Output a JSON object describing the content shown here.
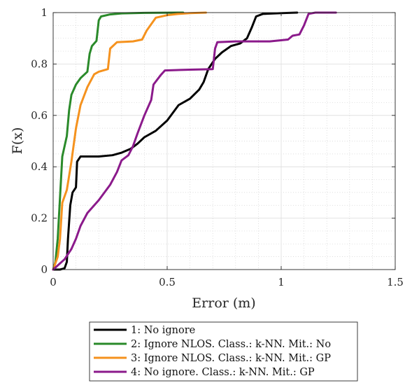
{
  "chart_data": {
    "type": "line",
    "title": "",
    "xlabel": "Error (m)",
    "ylabel": "F(x)",
    "xlim": [
      0,
      1.5
    ],
    "ylim": [
      0,
      1
    ],
    "xticks": [
      "0",
      "0.5",
      "1",
      "1.5"
    ],
    "yticks": [
      "0",
      "0.2",
      "0.4",
      "0.6",
      "0.8",
      "1"
    ],
    "grid": true,
    "minor_grid": true,
    "legend_position": "bottom-outside",
    "series": [
      {
        "name": "1: No ignore",
        "color": "#000000",
        "points": [
          [
            0,
            0
          ],
          [
            0.03,
            0
          ],
          [
            0.05,
            0.005
          ],
          [
            0.06,
            0.03
          ],
          [
            0.065,
            0.12
          ],
          [
            0.075,
            0.25
          ],
          [
            0.085,
            0.3
          ],
          [
            0.1,
            0.32
          ],
          [
            0.105,
            0.42
          ],
          [
            0.12,
            0.44
          ],
          [
            0.2,
            0.44
          ],
          [
            0.26,
            0.445
          ],
          [
            0.3,
            0.455
          ],
          [
            0.34,
            0.47
          ],
          [
            0.37,
            0.49
          ],
          [
            0.4,
            0.515
          ],
          [
            0.45,
            0.54
          ],
          [
            0.5,
            0.58
          ],
          [
            0.55,
            0.64
          ],
          [
            0.6,
            0.665
          ],
          [
            0.64,
            0.7
          ],
          [
            0.66,
            0.73
          ],
          [
            0.68,
            0.78
          ],
          [
            0.71,
            0.82
          ],
          [
            0.74,
            0.845
          ],
          [
            0.78,
            0.87
          ],
          [
            0.82,
            0.88
          ],
          [
            0.85,
            0.9
          ],
          [
            0.87,
            0.94
          ],
          [
            0.89,
            0.985
          ],
          [
            0.92,
            0.995
          ],
          [
            1.0,
            0.998
          ],
          [
            1.07,
            1.0
          ]
        ]
      },
      {
        "name": "2: Ignore NLOS. Class.: k-NN. Mit.: No",
        "color": "#2a8a2a",
        "points": [
          [
            0,
            0
          ],
          [
            0.01,
            0.03
          ],
          [
            0.02,
            0.12
          ],
          [
            0.03,
            0.28
          ],
          [
            0.04,
            0.44
          ],
          [
            0.06,
            0.52
          ],
          [
            0.07,
            0.62
          ],
          [
            0.08,
            0.68
          ],
          [
            0.1,
            0.72
          ],
          [
            0.12,
            0.745
          ],
          [
            0.15,
            0.77
          ],
          [
            0.16,
            0.84
          ],
          [
            0.17,
            0.87
          ],
          [
            0.19,
            0.89
          ],
          [
            0.2,
            0.97
          ],
          [
            0.21,
            0.985
          ],
          [
            0.25,
            0.993
          ],
          [
            0.3,
            0.997
          ],
          [
            0.4,
            0.999
          ],
          [
            0.57,
            1.0
          ]
        ]
      },
      {
        "name": "3: Ignore NLOS. Class.: k-NN. Mit.: GP",
        "color": "#f5921e",
        "points": [
          [
            0,
            0
          ],
          [
            0.02,
            0.05
          ],
          [
            0.03,
            0.12
          ],
          [
            0.04,
            0.26
          ],
          [
            0.06,
            0.31
          ],
          [
            0.08,
            0.42
          ],
          [
            0.1,
            0.55
          ],
          [
            0.12,
            0.64
          ],
          [
            0.15,
            0.71
          ],
          [
            0.18,
            0.76
          ],
          [
            0.2,
            0.77
          ],
          [
            0.24,
            0.78
          ],
          [
            0.25,
            0.86
          ],
          [
            0.28,
            0.885
          ],
          [
            0.35,
            0.888
          ],
          [
            0.39,
            0.895
          ],
          [
            0.41,
            0.93
          ],
          [
            0.45,
            0.98
          ],
          [
            0.5,
            0.99
          ],
          [
            0.55,
            0.995
          ],
          [
            0.6,
            0.998
          ],
          [
            0.67,
            1.0
          ]
        ]
      },
      {
        "name": "4: No ignore. Class.: k-NN. Mit.: GP",
        "color": "#8b1a8b",
        "points": [
          [
            0,
            0
          ],
          [
            0.05,
            0.04
          ],
          [
            0.08,
            0.08
          ],
          [
            0.1,
            0.12
          ],
          [
            0.12,
            0.17
          ],
          [
            0.15,
            0.22
          ],
          [
            0.2,
            0.27
          ],
          [
            0.25,
            0.33
          ],
          [
            0.28,
            0.38
          ],
          [
            0.3,
            0.425
          ],
          [
            0.33,
            0.445
          ],
          [
            0.35,
            0.48
          ],
          [
            0.37,
            0.53
          ],
          [
            0.4,
            0.6
          ],
          [
            0.43,
            0.66
          ],
          [
            0.44,
            0.72
          ],
          [
            0.47,
            0.755
          ],
          [
            0.49,
            0.775
          ],
          [
            0.6,
            0.778
          ],
          [
            0.7,
            0.78
          ],
          [
            0.71,
            0.86
          ],
          [
            0.72,
            0.885
          ],
          [
            0.8,
            0.888
          ],
          [
            0.95,
            0.888
          ],
          [
            1.03,
            0.895
          ],
          [
            1.05,
            0.91
          ],
          [
            1.08,
            0.915
          ],
          [
            1.1,
            0.95
          ],
          [
            1.12,
            0.995
          ],
          [
            1.15,
            1.0
          ],
          [
            1.24,
            1.0
          ]
        ]
      }
    ]
  }
}
